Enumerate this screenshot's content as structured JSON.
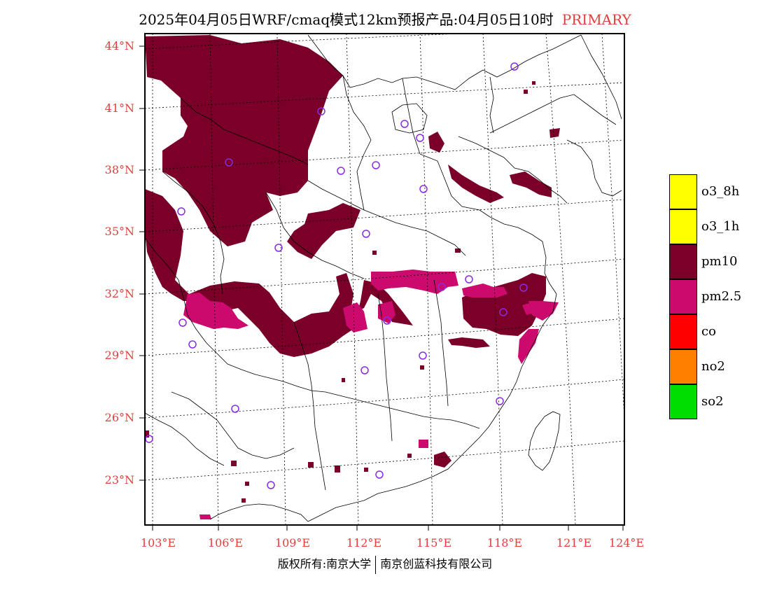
{
  "title": {
    "main": "2025年04月05日WRF/cmaq模式12km预报产品:04月05日10时",
    "tag": "PRIMARY"
  },
  "lat_labels": [
    "44°N",
    "41°N",
    "38°N",
    "35°N",
    "32°N",
    "29°N",
    "26°N",
    "23°N"
  ],
  "lon_labels": [
    "103°E",
    "106°E",
    "109°E",
    "112°E",
    "115°E",
    "118°E",
    "121°E",
    "124°E"
  ],
  "legend": [
    {
      "label": "o3_8h",
      "color": "#ffff00"
    },
    {
      "label": "o3_1h",
      "color": "#ffff00"
    },
    {
      "label": "pm10",
      "color": "#7a0029"
    },
    {
      "label": "pm2.5",
      "color": "#cc0a6e"
    },
    {
      "label": "co",
      "color": "#ff0000"
    },
    {
      "label": "no2",
      "color": "#ff7f00"
    },
    {
      "label": "so2",
      "color": "#00dd00"
    }
  ],
  "footer": {
    "left": "版权所有:南京大学",
    "right": "南京创蓝科技有限公司"
  },
  "colors": {
    "pm10": "#7a0029",
    "pm25": "#cc0a6e",
    "station": "#8a2be2",
    "axis_label": "#e0403c"
  }
}
